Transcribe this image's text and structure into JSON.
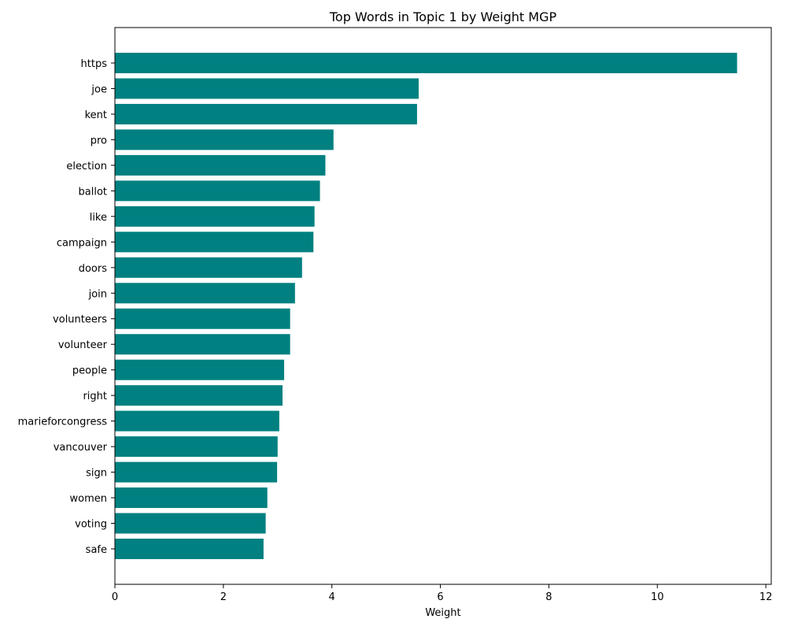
{
  "chart_data": {
    "type": "bar",
    "orientation": "horizontal",
    "title": "Top Words in Topic 1 by Weight MGP",
    "xlabel": "Weight",
    "ylabel": "",
    "xlim": [
      0,
      12.1
    ],
    "xticks": [
      0,
      2,
      4,
      6,
      8,
      10,
      12
    ],
    "grid": false,
    "bar_color": "#008080",
    "categories": [
      "https",
      "joe",
      "kent",
      "pro",
      "election",
      "ballot",
      "like",
      "campaign",
      "doors",
      "join",
      "volunteers",
      "volunteer",
      "people",
      "right",
      "marieforcongress",
      "vancouver",
      "sign",
      "women",
      "voting",
      "safe"
    ],
    "values": [
      11.47,
      5.6,
      5.57,
      4.03,
      3.88,
      3.78,
      3.68,
      3.66,
      3.45,
      3.32,
      3.23,
      3.23,
      3.12,
      3.09,
      3.03,
      3.0,
      2.99,
      2.81,
      2.78,
      2.74
    ]
  }
}
